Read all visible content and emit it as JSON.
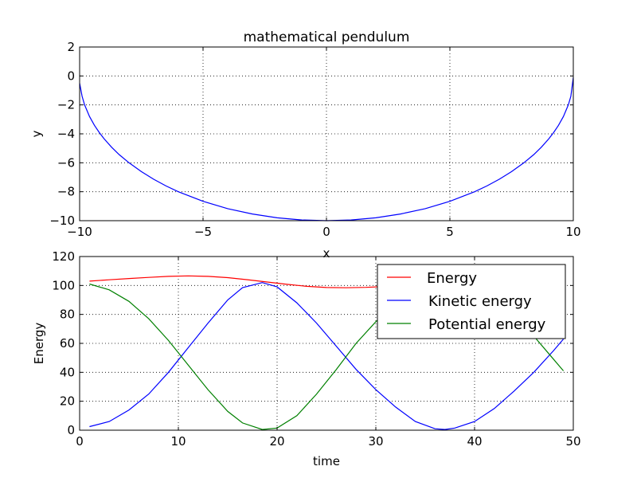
{
  "chart_data": [
    {
      "type": "line",
      "title": "mathematical pendulum",
      "xlabel": "x",
      "ylabel": "y",
      "xlim": [
        -10,
        10
      ],
      "ylim": [
        -10,
        2
      ],
      "xticks": [
        -10,
        -5,
        0,
        5,
        10
      ],
      "yticks": [
        -10,
        -8,
        -6,
        -4,
        -2,
        0,
        2
      ],
      "grid": true,
      "series": [
        {
          "color": "#0000ff",
          "x": [
            -10,
            -9.9,
            -9.8,
            -9.6,
            -9.4,
            -9.2,
            -9.0,
            -8.7,
            -8.4,
            -8.0,
            -7.5,
            -7.0,
            -6.5,
            -6.0,
            -5.0,
            -4.0,
            -3.0,
            -2.0,
            -1.0,
            0,
            1.0,
            2.0,
            3.0,
            4.0,
            5.0,
            6.0,
            6.5,
            7.0,
            7.5,
            8.0,
            8.4,
            8.7,
            9.0,
            9.2,
            9.4,
            9.6,
            9.8,
            9.9,
            10
          ],
          "y": [
            -0.5,
            -1.41,
            -1.99,
            -2.8,
            -3.41,
            -3.92,
            -4.36,
            -4.93,
            -5.43,
            -6.0,
            -6.61,
            -7.14,
            -7.6,
            -8.0,
            -8.66,
            -9.17,
            -9.54,
            -9.8,
            -9.95,
            -10.0,
            -9.95,
            -9.8,
            -9.54,
            -9.17,
            -8.66,
            -8.0,
            -7.6,
            -7.14,
            -6.61,
            -6.0,
            -5.43,
            -4.93,
            -4.36,
            -3.92,
            -3.41,
            -2.8,
            -1.99,
            -1.41,
            -0.1
          ]
        }
      ]
    },
    {
      "type": "line",
      "title": "",
      "xlabel": "time",
      "ylabel": "Energy",
      "xlim": [
        0,
        50
      ],
      "ylim": [
        0,
        120
      ],
      "xticks": [
        0,
        10,
        20,
        30,
        40,
        50
      ],
      "yticks": [
        0,
        20,
        40,
        60,
        80,
        100,
        120
      ],
      "grid": true,
      "legend": "top-right",
      "series": [
        {
          "name": "Energy",
          "color": "#ff0000",
          "x": [
            1,
            3,
            5,
            7,
            9,
            11,
            13,
            15,
            17,
            19,
            21,
            23,
            25,
            27,
            29,
            31
          ],
          "y": [
            103.0,
            103.9,
            104.8,
            105.6,
            106.3,
            106.6,
            106.3,
            105.4,
            104.0,
            102.4,
            100.8,
            99.4,
            98.6,
            98.4,
            98.7,
            99.3
          ]
        },
        {
          "name": "Kinetic energy",
          "color": "#0000ff",
          "x": [
            1,
            3,
            5,
            7,
            9,
            11,
            13,
            15,
            16.5,
            18.5,
            20,
            22,
            24,
            26,
            28,
            30,
            32,
            34,
            36,
            37,
            38,
            40,
            42,
            44,
            46,
            48,
            49
          ],
          "y": [
            2.5,
            6.0,
            14.0,
            25.0,
            40.0,
            57.0,
            74.0,
            90.0,
            98.5,
            102.0,
            99.0,
            88.0,
            74.0,
            58.0,
            42.0,
            28.0,
            16.0,
            6.0,
            1.0,
            0.5,
            1.5,
            6.0,
            15.0,
            27.0,
            40.0,
            55.0,
            63.0
          ]
        },
        {
          "name": "Potential energy",
          "color": "#008000",
          "x": [
            1,
            3,
            5,
            7,
            9,
            11,
            13,
            15,
            16.5,
            18.5,
            20,
            22,
            24,
            26,
            28,
            30,
            31.5
          ],
          "y": [
            101.0,
            97.0,
            89.0,
            77.0,
            62.0,
            45.0,
            28.0,
            13.0,
            5.0,
            0.5,
            1.5,
            10.0,
            25.0,
            42.0,
            60.0,
            75.0,
            84.0
          ]
        },
        {
          "color": "#008000",
          "x": [
            46,
            47.5,
            49
          ],
          "y": [
            65.0,
            53.0,
            41.0
          ]
        }
      ]
    }
  ]
}
